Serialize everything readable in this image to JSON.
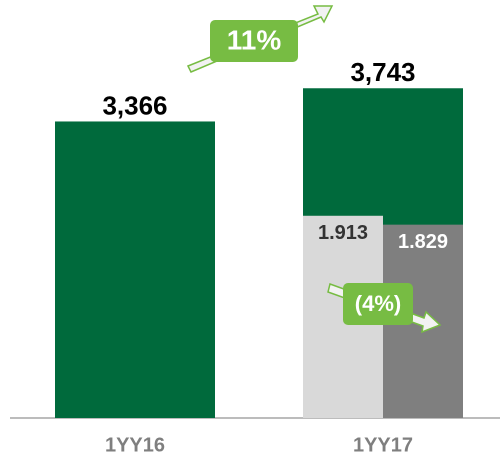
{
  "chart_data": {
    "type": "bar",
    "categories": [
      "1YY16",
      "1YY17"
    ],
    "values": [
      3366,
      3743
    ],
    "value_labels": [
      "3,366",
      "3,743"
    ],
    "color": "#006a3c",
    "ylim": [
      0,
      4200
    ],
    "breakdown": {
      "values": [
        1.913,
        1.829
      ],
      "colors": [
        "#d9d9d9",
        "#7f7f7f"
      ],
      "label_colors": [
        "#333333",
        "#ffffff"
      ],
      "axis": "y2"
    },
    "y2lim": [
      0,
      3.5
    ],
    "annotations": [
      "11%",
      "(4%)"
    ],
    "annotation_color": "#77bc43"
  }
}
